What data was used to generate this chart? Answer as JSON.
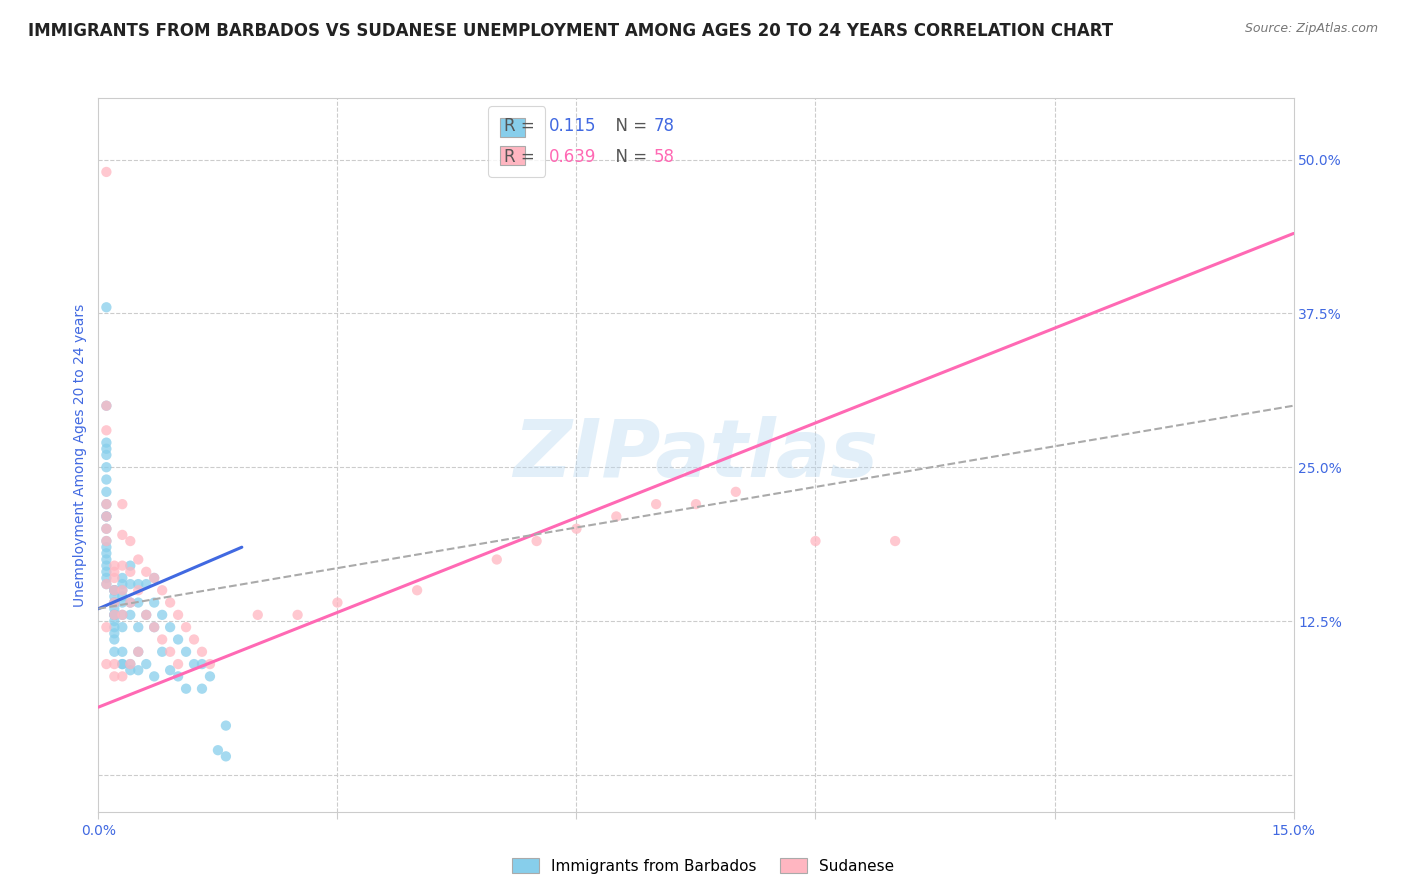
{
  "title": "IMMIGRANTS FROM BARBADOS VS SUDANESE UNEMPLOYMENT AMONG AGES 20 TO 24 YEARS CORRELATION CHART",
  "source": "Source: ZipAtlas.com",
  "ylabel": "Unemployment Among Ages 20 to 24 years",
  "xlim": [
    0.0,
    0.15
  ],
  "ylim": [
    -0.03,
    0.55
  ],
  "xticks": [
    0.0,
    0.03,
    0.06,
    0.09,
    0.12,
    0.15
  ],
  "xtick_labels": [
    "0.0%",
    "",
    "",
    "",
    "",
    "15.0%"
  ],
  "yticks_right": [
    0.0,
    0.125,
    0.25,
    0.375,
    0.5
  ],
  "ytick_labels_right": [
    "",
    "12.5%",
    "25.0%",
    "37.5%",
    "50.0%"
  ],
  "blue_color": "#87CEEB",
  "pink_color": "#FFB6C1",
  "blue_line_color": "#4169E1",
  "pink_line_color": "#FF69B4",
  "tick_label_color": "#4169E1",
  "ylabel_color": "#4169E1",
  "watermark": "ZIPatlas",
  "blue_scatter_x": [
    0.001,
    0.001,
    0.001,
    0.001,
    0.001,
    0.001,
    0.001,
    0.001,
    0.001,
    0.001,
    0.001,
    0.001,
    0.001,
    0.001,
    0.001,
    0.001,
    0.001,
    0.001,
    0.001,
    0.001,
    0.002,
    0.002,
    0.002,
    0.002,
    0.002,
    0.002,
    0.002,
    0.002,
    0.002,
    0.002,
    0.002,
    0.002,
    0.002,
    0.002,
    0.002,
    0.003,
    0.003,
    0.003,
    0.003,
    0.003,
    0.003,
    0.003,
    0.003,
    0.003,
    0.004,
    0.004,
    0.004,
    0.004,
    0.004,
    0.004,
    0.005,
    0.005,
    0.005,
    0.005,
    0.005,
    0.006,
    0.006,
    0.006,
    0.007,
    0.007,
    0.007,
    0.008,
    0.008,
    0.009,
    0.009,
    0.01,
    0.01,
    0.011,
    0.011,
    0.012,
    0.013,
    0.013,
    0.014,
    0.015,
    0.016,
    0.016,
    0.007,
    0.003
  ],
  "blue_scatter_y": [
    0.38,
    0.3,
    0.27,
    0.265,
    0.26,
    0.25,
    0.24,
    0.23,
    0.22,
    0.21,
    0.21,
    0.2,
    0.19,
    0.185,
    0.18,
    0.175,
    0.17,
    0.165,
    0.16,
    0.155,
    0.15,
    0.15,
    0.15,
    0.145,
    0.14,
    0.14,
    0.135,
    0.13,
    0.13,
    0.13,
    0.125,
    0.12,
    0.115,
    0.11,
    0.1,
    0.16,
    0.155,
    0.15,
    0.145,
    0.14,
    0.13,
    0.12,
    0.1,
    0.09,
    0.17,
    0.155,
    0.14,
    0.13,
    0.09,
    0.085,
    0.155,
    0.14,
    0.12,
    0.1,
    0.085,
    0.155,
    0.13,
    0.09,
    0.14,
    0.12,
    0.08,
    0.13,
    0.1,
    0.12,
    0.085,
    0.11,
    0.08,
    0.1,
    0.07,
    0.09,
    0.09,
    0.07,
    0.08,
    0.02,
    0.015,
    0.04,
    0.16,
    0.09
  ],
  "pink_scatter_x": [
    0.001,
    0.001,
    0.001,
    0.001,
    0.001,
    0.001,
    0.001,
    0.001,
    0.001,
    0.001,
    0.002,
    0.002,
    0.002,
    0.002,
    0.002,
    0.002,
    0.002,
    0.002,
    0.003,
    0.003,
    0.003,
    0.003,
    0.003,
    0.003,
    0.004,
    0.004,
    0.004,
    0.004,
    0.005,
    0.005,
    0.005,
    0.006,
    0.006,
    0.007,
    0.007,
    0.008,
    0.008,
    0.009,
    0.009,
    0.01,
    0.01,
    0.011,
    0.012,
    0.013,
    0.014,
    0.02,
    0.025,
    0.03,
    0.04,
    0.05,
    0.055,
    0.06,
    0.065,
    0.07,
    0.075,
    0.08,
    0.09,
    0.1
  ],
  "pink_scatter_y": [
    0.49,
    0.3,
    0.28,
    0.22,
    0.21,
    0.2,
    0.19,
    0.155,
    0.12,
    0.09,
    0.17,
    0.165,
    0.16,
    0.15,
    0.14,
    0.13,
    0.09,
    0.08,
    0.22,
    0.195,
    0.17,
    0.15,
    0.13,
    0.08,
    0.19,
    0.165,
    0.14,
    0.09,
    0.175,
    0.15,
    0.1,
    0.165,
    0.13,
    0.16,
    0.12,
    0.15,
    0.11,
    0.14,
    0.1,
    0.13,
    0.09,
    0.12,
    0.11,
    0.1,
    0.09,
    0.13,
    0.13,
    0.14,
    0.15,
    0.175,
    0.19,
    0.2,
    0.21,
    0.22,
    0.22,
    0.23,
    0.19,
    0.19
  ],
  "blue_trend_x": [
    0.0,
    0.018
  ],
  "blue_trend_y": [
    0.135,
    0.185
  ],
  "pink_trend_x": [
    0.0,
    0.15
  ],
  "pink_trend_y": [
    0.055,
    0.44
  ],
  "dashed_trend_x": [
    0.0,
    0.15
  ],
  "dashed_trend_y": [
    0.135,
    0.3
  ],
  "title_fontsize": 12,
  "axis_fontsize": 10,
  "tick_fontsize": 10,
  "legend_fontsize": 12,
  "background_color": "#ffffff",
  "grid_color": "#cccccc"
}
